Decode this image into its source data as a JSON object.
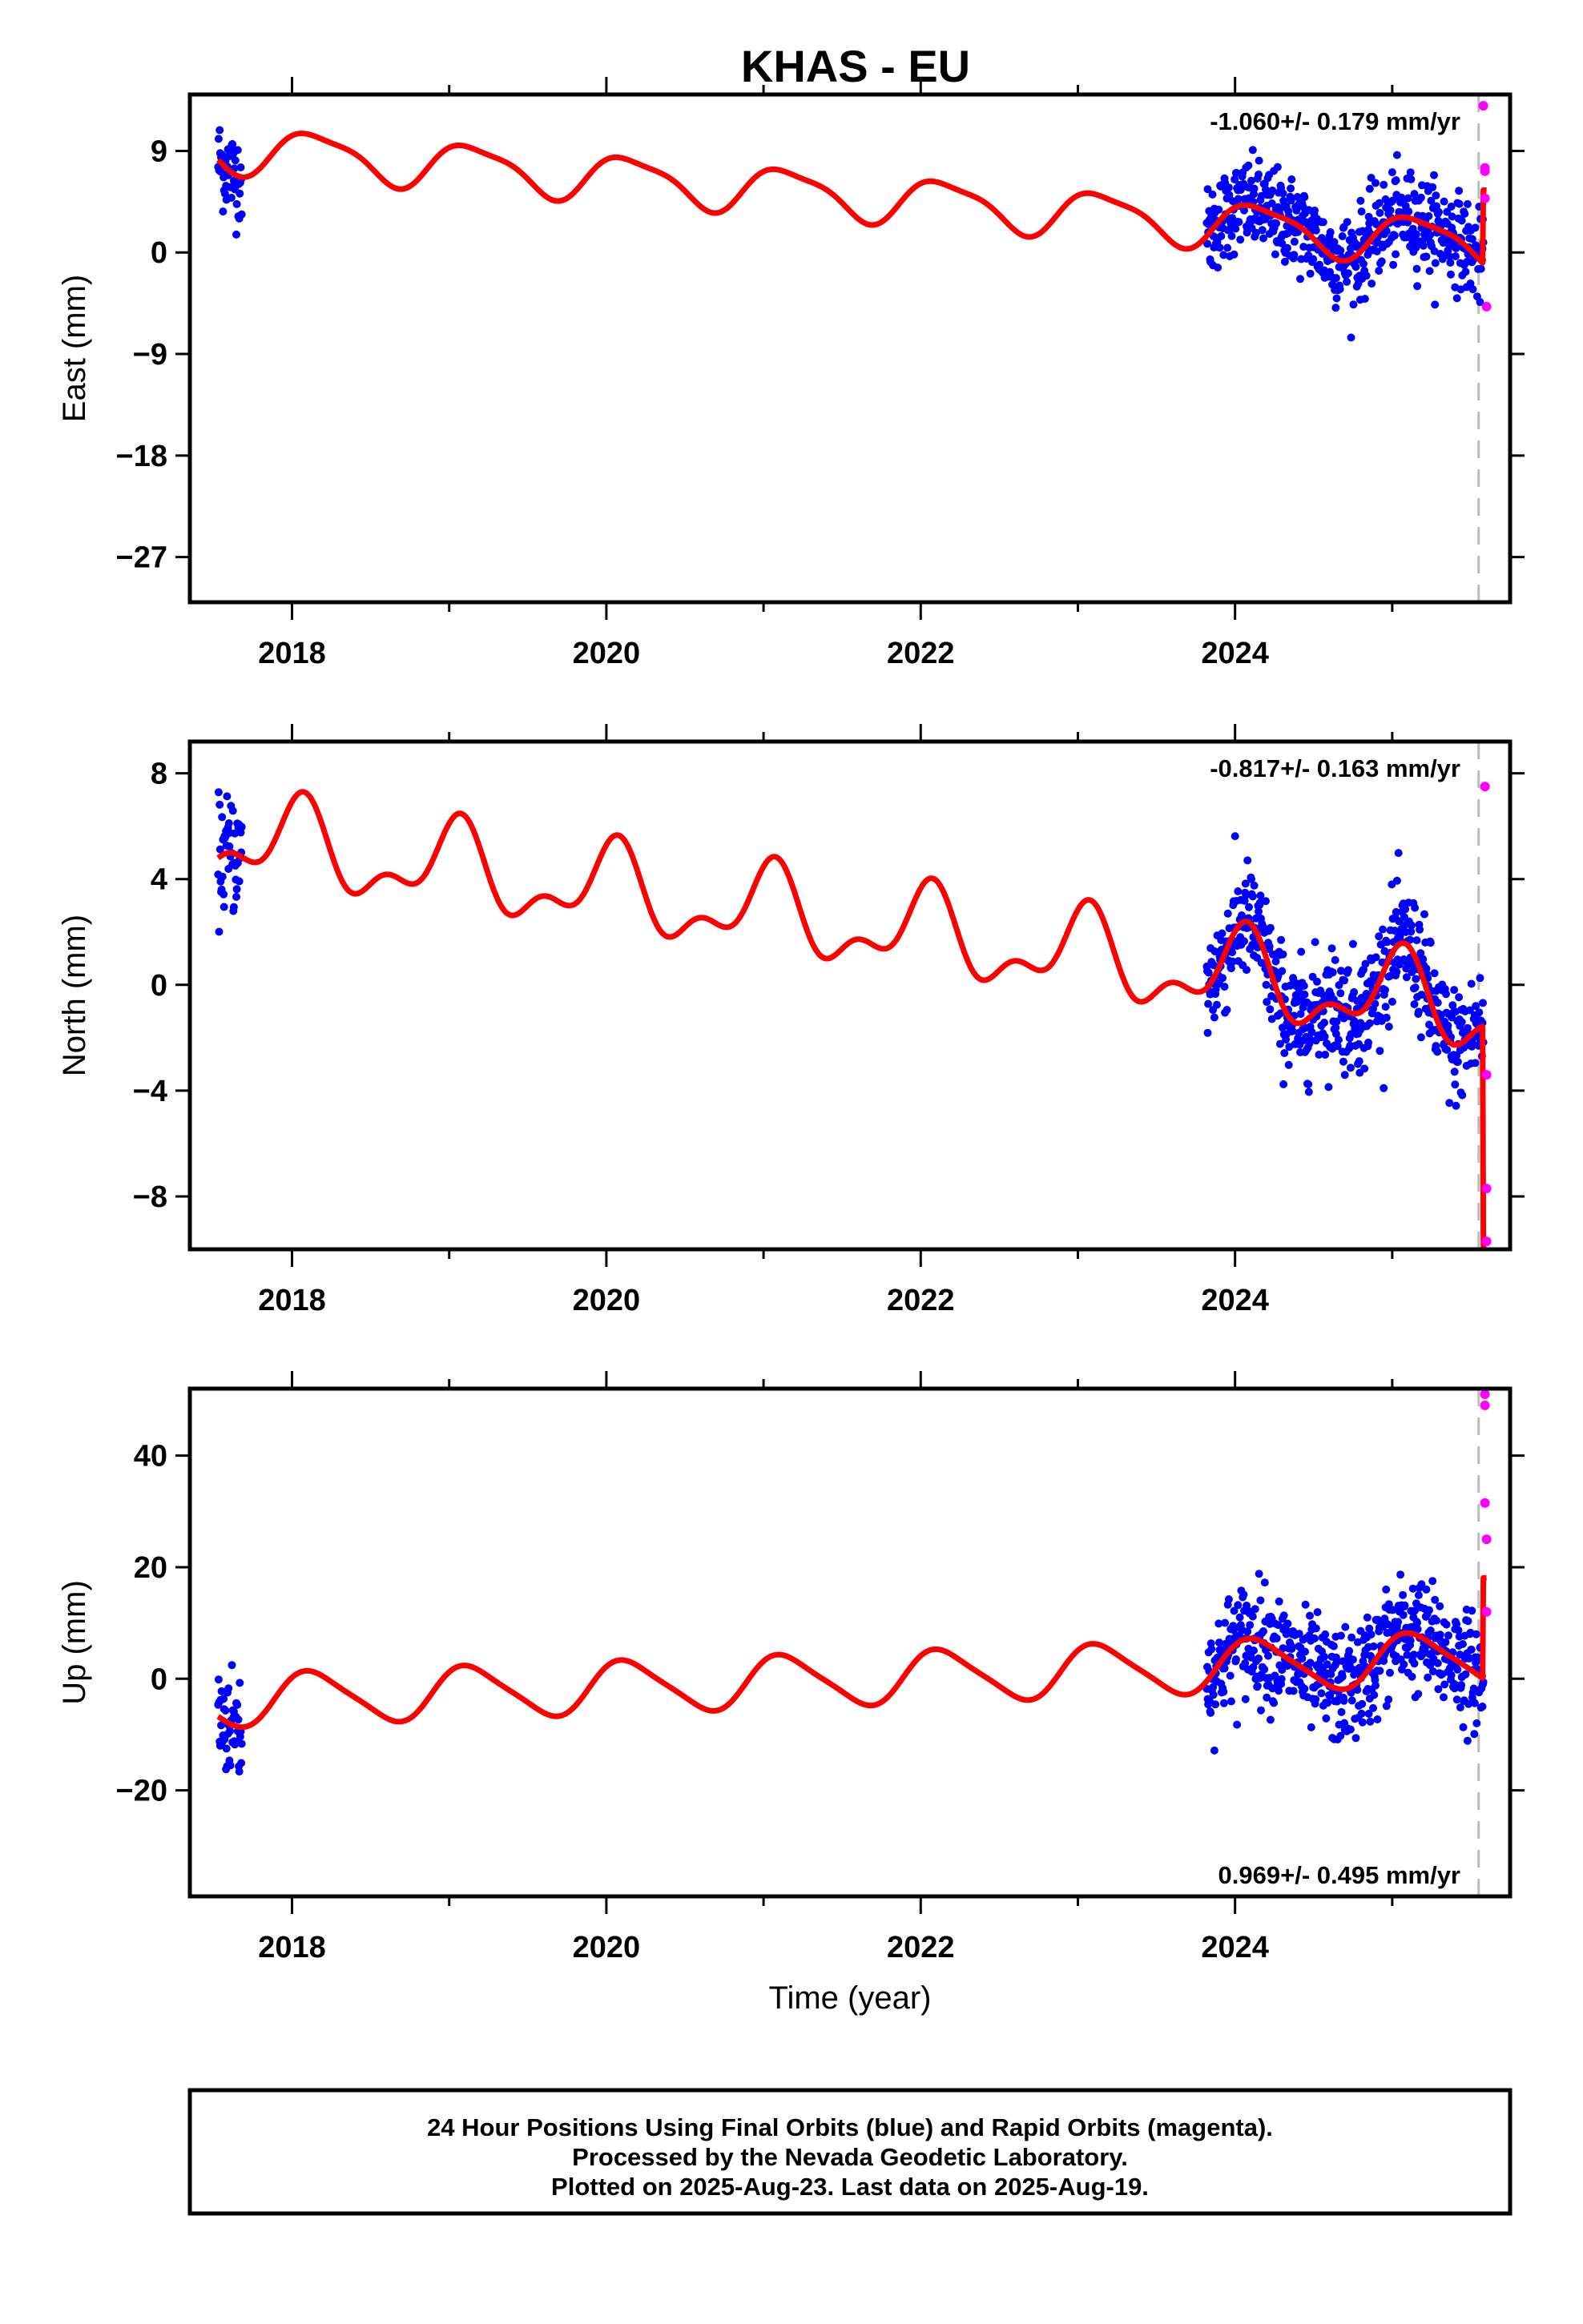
{
  "title": "KHAS - EU",
  "footer": {
    "line1": "24 Hour Positions Using Final Orbits (blue) and Rapid Orbits (magenta).",
    "line2": "Processed by the Nevada Geodetic Laboratory.",
    "line3": "Plotted on 2025-Aug-23. Last data on 2025-Aug-19."
  },
  "colors": {
    "final": "#0000ff",
    "rapid": "#ff00ff",
    "model": "#ff0000",
    "marker": "#bbbbbb"
  },
  "chart_data": [
    {
      "type": "scatter",
      "component": "east",
      "ylabel": "East (mm)",
      "xlabel": "",
      "xlim": [
        2017.35,
        2025.75
      ],
      "ylim": [
        -31,
        14
      ],
      "xticks": [
        2018,
        2020,
        2022,
        2024
      ],
      "yticks": [
        9,
        0,
        -9,
        -18,
        -27
      ],
      "ytick_labels": [
        "9",
        "0",
        "−9",
        "−18",
        "−27"
      ],
      "rate_text": "-1.060+/- 0.179 mm/yr",
      "rate_position": "top-right",
      "event_line_x": 2025.55,
      "model": {
        "offset": 9.3,
        "rate": -1.06,
        "ann_amp": 2.0,
        "ann_phase": 0.6,
        "semi_amp": 0.5,
        "semi_phase": 2.0,
        "t0": 2017.5,
        "step": 6.5
      },
      "series": [
        {
          "name": "Final Orbits",
          "segments": [
            [
              2017.53,
              2017.68
            ],
            [
              2023.82,
              2025.58
            ]
          ],
          "center_offset": 0,
          "scatter": 2.0
        },
        {
          "name": "Rapid Orbits",
          "points": [
            [
              2025.58,
              13.0
            ],
            [
              2025.59,
              7.5
            ],
            [
              2025.59,
              7.2
            ],
            [
              2025.59,
              4.8
            ],
            [
              2025.6,
              -4.8
            ]
          ]
        }
      ]
    },
    {
      "type": "scatter",
      "component": "north",
      "ylabel": "North (mm)",
      "xlabel": "",
      "xlim": [
        2017.35,
        2025.75
      ],
      "ylim": [
        -10,
        9.2
      ],
      "xticks": [
        2018,
        2020,
        2022,
        2024
      ],
      "yticks": [
        8,
        4,
        0,
        -4,
        -8
      ],
      "ytick_labels": [
        "8",
        "4",
        "0",
        "−4",
        "−8"
      ],
      "rate_text": "-0.817+/- 0.163 mm/yr",
      "rate_position": "top-right",
      "event_line_x": 2025.55,
      "model": {
        "offset": 5.6,
        "rate": -0.817,
        "ann_amp": 1.4,
        "ann_phase": 1.3,
        "semi_amp": 0.8,
        "semi_phase": 0.5,
        "t0": 2017.5,
        "step": -8.0
      },
      "series": [
        {
          "name": "Final Orbits",
          "segments": [
            [
              2017.53,
              2017.68
            ],
            [
              2023.82,
              2025.58
            ]
          ],
          "center_offset": 0,
          "scatter": 1.1
        },
        {
          "name": "Rapid Orbits",
          "points": [
            [
              2025.59,
              7.5
            ],
            [
              2025.6,
              -3.4
            ],
            [
              2025.6,
              -7.7
            ],
            [
              2025.6,
              -9.7
            ]
          ]
        }
      ]
    },
    {
      "type": "scatter",
      "component": "up",
      "ylabel": "Up (mm)",
      "xlabel": "Time (year)",
      "xlim": [
        2017.35,
        2025.75
      ],
      "ylim": [
        -39,
        52
      ],
      "xticks": [
        2018,
        2020,
        2022,
        2024
      ],
      "yticks": [
        40,
        20,
        0,
        -20
      ],
      "ytick_labels": [
        "40",
        "20",
        "0",
        "−20"
      ],
      "rate_text": "0.969+/- 0.495 mm/yr",
      "rate_position": "bottom-right",
      "event_line_x": 2025.55,
      "model": {
        "offset": -4.0,
        "rate": 0.969,
        "ann_amp": 4.6,
        "ann_phase": 0.7,
        "semi_amp": 0.8,
        "semi_phase": 1.4,
        "t0": 2017.5,
        "step": 18.0
      },
      "series": [
        {
          "name": "Final Orbits",
          "segments": [
            [
              2017.53,
              2017.68
            ],
            [
              2023.82,
              2025.58
            ]
          ],
          "center_offset": 0,
          "scatter": 5.0
        },
        {
          "name": "Rapid Orbits",
          "points": [
            [
              2025.59,
              51.0
            ],
            [
              2025.59,
              49.0
            ],
            [
              2025.59,
              31.5
            ],
            [
              2025.6,
              25.0
            ],
            [
              2025.6,
              12.0
            ]
          ]
        }
      ]
    }
  ]
}
